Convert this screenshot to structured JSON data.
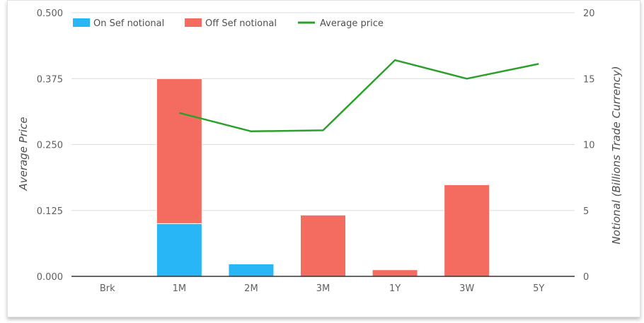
{
  "chart_data": {
    "type": "bar+line",
    "categories": [
      "Brk",
      "1M",
      "2M",
      "3M",
      "1Y",
      "3W",
      "5Y"
    ],
    "series": [
      {
        "name": "On Sef notional",
        "kind": "stacked-bar",
        "axis": "right",
        "color": "#29b6f6",
        "values": [
          0,
          4.0,
          0.95,
          0,
          0,
          0,
          0
        ]
      },
      {
        "name": "Off Sef notional",
        "kind": "stacked-bar",
        "axis": "right",
        "color": "#f46c5f",
        "values": [
          0,
          11.0,
          0.05,
          4.65,
          0.5,
          6.95,
          0
        ]
      },
      {
        "name": "Average price",
        "kind": "line",
        "axis": "left",
        "color": "#2ca02c",
        "values": [
          null,
          0.31,
          0.275,
          0.277,
          0.41,
          0.375,
          0.403
        ]
      }
    ],
    "left_axis": {
      "title": "Average Price",
      "min": 0,
      "max": 0.5,
      "ticks": [
        "0.000",
        "0.125",
        "0.250",
        "0.375",
        "0.500"
      ]
    },
    "right_axis": {
      "title": "Notional (Billions Trade Currency)",
      "min": 0,
      "max": 20,
      "ticks": [
        "0",
        "5",
        "10",
        "15",
        "20"
      ]
    },
    "legend": {
      "position": "top-left"
    },
    "grid": true
  }
}
